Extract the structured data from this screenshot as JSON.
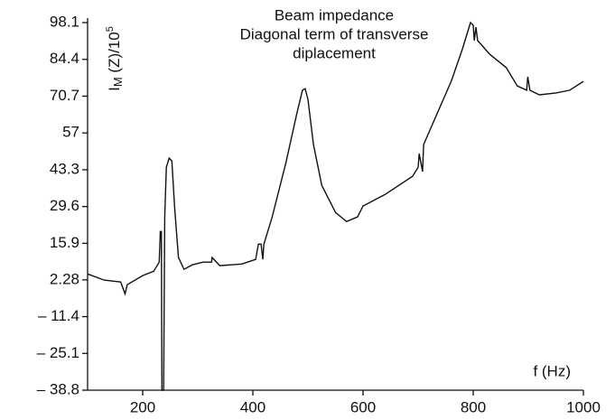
{
  "chart_data": {
    "type": "line",
    "title_lines": [
      "Beam impedance",
      "Diagonal term of transverse",
      "diplacement"
    ],
    "ylabel": {
      "main": "I",
      "sub": "M",
      "rest": " (Z)/10",
      "sup": "5"
    },
    "xlabel": "f (Hz)",
    "color": "#111111",
    "x": [
      100,
      130,
      160,
      168,
      172,
      200,
      220,
      230,
      232,
      234,
      235,
      238,
      240,
      243,
      248,
      253,
      258,
      265,
      275,
      290,
      310,
      325,
      326,
      340,
      380,
      405,
      410,
      415,
      418,
      420,
      435,
      460,
      480,
      490,
      495,
      500,
      510,
      525,
      550,
      570,
      590,
      600,
      640,
      690,
      700,
      702,
      708,
      710,
      760,
      780,
      795,
      800,
      802,
      805,
      808,
      830,
      860,
      880,
      897,
      899,
      903,
      920,
      950,
      975,
      1000
    ],
    "values": [
      4.5,
      2.2,
      1.5,
      -2.9,
      0.5,
      3.9,
      5.5,
      8.9,
      20.3,
      20.3,
      -38.8,
      -38.8,
      25.7,
      44.2,
      47.6,
      46.6,
      29.1,
      10.6,
      6.2,
      7.9,
      8.9,
      8.9,
      10.6,
      7.6,
      8.2,
      9.9,
      15.6,
      15.6,
      9.9,
      15.6,
      25.7,
      45.9,
      64.4,
      72.9,
      73.5,
      69.5,
      52.7,
      37.5,
      27.4,
      24.0,
      25.7,
      29.8,
      34.1,
      40.9,
      44.2,
      49.3,
      42.6,
      52.7,
      76.2,
      88.0,
      98.1,
      97.1,
      91.4,
      96.4,
      91.4,
      86.3,
      81.3,
      74.5,
      72.9,
      77.9,
      72.9,
      71.2,
      71.9,
      72.9,
      76.2
    ],
    "xlim": [
      100,
      1000
    ],
    "xticks": [
      200,
      400,
      600,
      800,
      1000
    ],
    "ylim": [
      -38.8,
      98.1
    ],
    "yticks": [
      98.1,
      84.4,
      70.7,
      57,
      43.3,
      29.6,
      15.9,
      2.28,
      {
        "value": -11.4,
        "label": "– 11.4"
      },
      {
        "value": -25.1,
        "label": "– 25.1"
      },
      {
        "value": -38.8,
        "label": "– 38.8"
      }
    ]
  }
}
